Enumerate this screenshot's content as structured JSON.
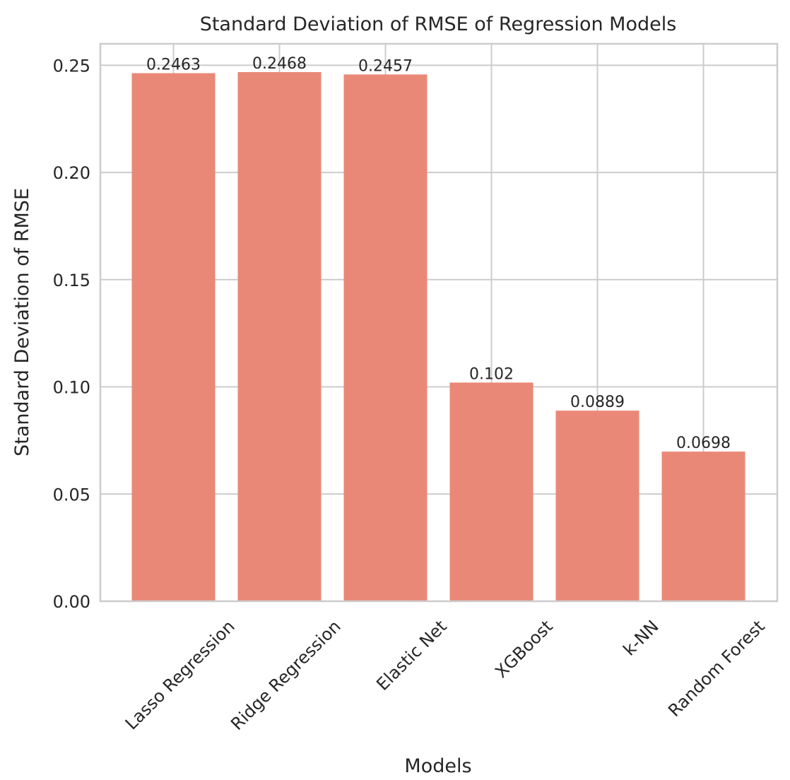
{
  "chart_data": {
    "type": "bar",
    "title": "Standard Deviation of RMSE of Regression Models",
    "xlabel": "Models",
    "ylabel": "Standard Deviation of RMSE",
    "categories": [
      "Lasso Regression",
      "Ridge Regression",
      "Elastic Net",
      "XGBoost",
      "k-NN",
      "Random Forest"
    ],
    "values": [
      0.2463,
      0.2468,
      0.2457,
      0.102,
      0.0889,
      0.0698
    ],
    "data_labels": [
      "0.2463",
      "0.2468",
      "0.2457",
      "0.102",
      "0.0889",
      "0.0698"
    ],
    "ylim": [
      0,
      0.26
    ],
    "yticks": [
      0.0,
      0.05,
      0.1,
      0.15,
      0.2,
      0.25
    ],
    "ytick_labels": [
      "0.00",
      "0.05",
      "0.10",
      "0.15",
      "0.20",
      "0.25"
    ],
    "bar_color": "#ea8877",
    "grid": true,
    "xtick_rotation": 45
  }
}
